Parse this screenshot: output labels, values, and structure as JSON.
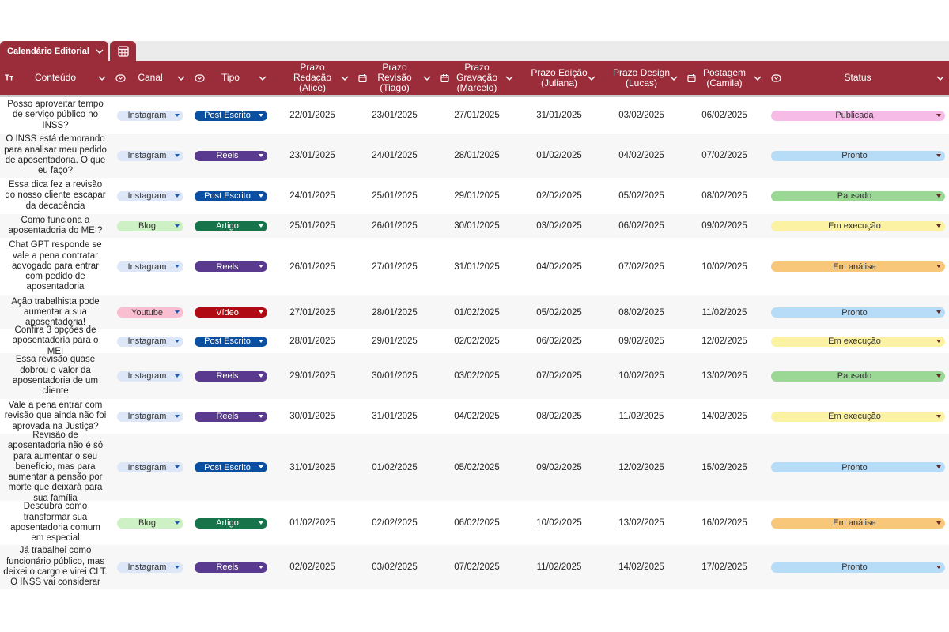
{
  "tab": {
    "label": "Calendário Editorial"
  },
  "headers": {
    "conteudo": "Conteúdo",
    "conteudo_type": "Tт",
    "canal": "Canal",
    "tipo": "Tipo",
    "prazo_redacao": [
      "Prazo",
      "Redação",
      "(Alice)"
    ],
    "prazo_revisao": [
      "Prazo",
      "Revisão",
      "(Tiago)"
    ],
    "prazo_gravacao": [
      "Prazo",
      "Gravação",
      "(Marcelo)"
    ],
    "prazo_edicao": [
      "Prazo Edição",
      "(Juliana)"
    ],
    "prazo_design": [
      "Prazo Design",
      "(Lucas)"
    ],
    "postagem": [
      "Postagem",
      "(Camila)"
    ],
    "status": "Status"
  },
  "colors": {
    "header": "#9b2d3b",
    "canal": {
      "Instagram": "#dde7f7",
      "Blog": "#cdf0c4",
      "Youtube": "#f9bfd0"
    },
    "tipo": {
      "Post Escrito": "#0b4fa0",
      "Reels": "#5a3a8e",
      "Artigo": "#16734a",
      "Vídeo": "#b00b14"
    },
    "status": {
      "Publicada": "#f7bbe8",
      "Pronto": "#b7dcf7",
      "Pausado": "#9bd795",
      "Em execução": "#fbf2a3",
      "Em análise": "#f8c77a"
    }
  },
  "rows": [
    {
      "conteudo": "Posso aproveitar tempo de serviço público no INSS?",
      "canal": "Instagram",
      "tipo": "Post Escrito",
      "redacao": "22/01/2025",
      "revisao": "23/01/2025",
      "gravacao": "27/01/2025",
      "edicao": "31/01/2025",
      "design": "03/02/2025",
      "postagem": "06/02/2025",
      "status": "Publicada"
    },
    {
      "conteudo": "O INSS está demorando para analisar meu pedido de aposentadoria. O que eu faço?",
      "canal": "Instagram",
      "tipo": "Reels",
      "redacao": "23/01/2025",
      "revisao": "24/01/2025",
      "gravacao": "28/01/2025",
      "edicao": "01/02/2025",
      "design": "04/02/2025",
      "postagem": "07/02/2025",
      "status": "Pronto"
    },
    {
      "conteudo": "Essa dica fez a revisão do nosso cliente escapar da decadência",
      "canal": "Instagram",
      "tipo": "Post Escrito",
      "redacao": "24/01/2025",
      "revisao": "25/01/2025",
      "gravacao": "29/01/2025",
      "edicao": "02/02/2025",
      "design": "05/02/2025",
      "postagem": "08/02/2025",
      "status": "Pausado"
    },
    {
      "conteudo": "Como funciona a aposentadoria do MEI?",
      "canal": "Blog",
      "tipo": "Artigo",
      "redacao": "25/01/2025",
      "revisao": "26/01/2025",
      "gravacao": "30/01/2025",
      "edicao": "03/02/2025",
      "design": "06/02/2025",
      "postagem": "09/02/2025",
      "status": "Em execução"
    },
    {
      "conteudo": "Chat GPT responde se vale a pena contratar advogado para entrar com pedido de aposentadoria",
      "canal": "Instagram",
      "tipo": "Reels",
      "redacao": "26/01/2025",
      "revisao": "27/01/2025",
      "gravacao": "31/01/2025",
      "edicao": "04/02/2025",
      "design": "07/02/2025",
      "postagem": "10/02/2025",
      "status": "Em análise"
    },
    {
      "conteudo": "Ação trabalhista pode aumentar a sua aposentadoria!",
      "canal": "Youtube",
      "tipo": "Vídeo",
      "redacao": "27/01/2025",
      "revisao": "28/01/2025",
      "gravacao": "01/02/2025",
      "edicao": "05/02/2025",
      "design": "08/02/2025",
      "postagem": "11/02/2025",
      "status": "Pronto"
    },
    {
      "conteudo": "Confira 3 opções de aposentadoria para o MEI",
      "canal": "Instagram",
      "tipo": "Post Escrito",
      "redacao": "28/01/2025",
      "revisao": "29/01/2025",
      "gravacao": "02/02/2025",
      "edicao": "06/02/2025",
      "design": "09/02/2025",
      "postagem": "12/02/2025",
      "status": "Em execução"
    },
    {
      "conteudo": "Essa revisão quase dobrou o valor da aposentadoria de um cliente",
      "canal": "Instagram",
      "tipo": "Reels",
      "redacao": "29/01/2025",
      "revisao": "30/01/2025",
      "gravacao": "03/02/2025",
      "edicao": "07/02/2025",
      "design": "10/02/2025",
      "postagem": "13/02/2025",
      "status": "Pausado"
    },
    {
      "conteudo": "Vale a pena entrar com revisão que ainda não foi aprovada na Justiça?",
      "canal": "Instagram",
      "tipo": "Reels",
      "redacao": "30/01/2025",
      "revisao": "31/01/2025",
      "gravacao": "04/02/2025",
      "edicao": "08/02/2025",
      "design": "11/02/2025",
      "postagem": "14/02/2025",
      "status": "Em execução"
    },
    {
      "conteudo": "Revisão de aposentadoria não é só para aumentar o seu benefício, mas para aumentar a pensão por morte que deixará para sua família",
      "canal": "Instagram",
      "tipo": "Post Escrito",
      "redacao": "31/01/2025",
      "revisao": "01/02/2025",
      "gravacao": "05/02/2025",
      "edicao": "09/02/2025",
      "design": "12/02/2025",
      "postagem": "15/02/2025",
      "status": "Pronto"
    },
    {
      "conteudo": "Descubra como transformar sua aposentadoria comum em especial",
      "canal": "Blog",
      "tipo": "Artigo",
      "redacao": "01/02/2025",
      "revisao": "02/02/2025",
      "gravacao": "06/02/2025",
      "edicao": "10/02/2025",
      "design": "13/02/2025",
      "postagem": "16/02/2025",
      "status": "Em análise"
    },
    {
      "conteudo": "Já trabalhei como funcionário público, mas deixei o cargo e virei CLT. O INSS vai considerar",
      "canal": "Instagram",
      "tipo": "Reels",
      "redacao": "02/02/2025",
      "revisao": "03/02/2025",
      "gravacao": "07/02/2025",
      "edicao": "11/02/2025",
      "design": "14/02/2025",
      "postagem": "17/02/2025",
      "status": "Pronto"
    }
  ]
}
